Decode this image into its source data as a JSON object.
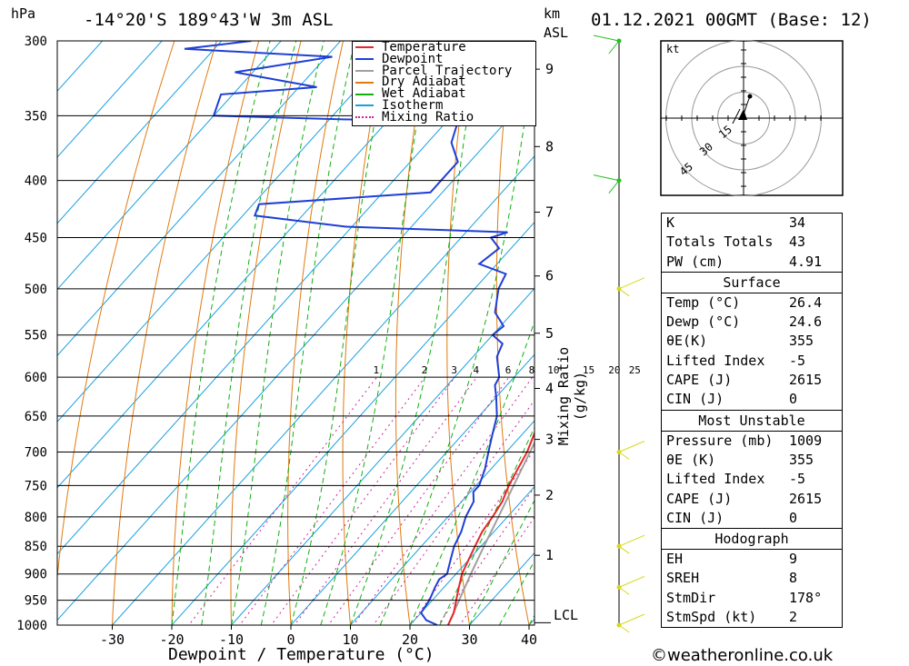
{
  "header": {
    "hpa": "hPa",
    "location": "-14°20'S 189°43'W 3m ASL",
    "km": "km",
    "asl": "ASL",
    "datetime": "01.12.2021 00GMT (Base: 12)"
  },
  "xaxis": {
    "label": "Dewpoint / Temperature (°C)",
    "ticks": [
      "-30",
      "-20",
      "-10",
      "0",
      "10",
      "20",
      "30",
      "40"
    ]
  },
  "yaxis": {
    "ticks": [
      "300",
      "350",
      "400",
      "450",
      "500",
      "550",
      "600",
      "650",
      "700",
      "750",
      "800",
      "850",
      "900",
      "950",
      "1000"
    ]
  },
  "km_ticks": [
    "9",
    "8",
    "7",
    "6",
    "5",
    "4",
    "3",
    "2",
    "1"
  ],
  "lcl_label": "LCL",
  "mixing_label": "Mixing Ratio (g/kg)",
  "mixing_values": [
    "1",
    "2",
    "3",
    "4",
    "6",
    "8",
    "10",
    "15",
    "20",
    "25"
  ],
  "legend": [
    "Temperature",
    "Dewpoint",
    "Parcel Trajectory",
    "Dry Adiabat",
    "Wet Adiabat",
    "Isotherm",
    "Mixing Ratio"
  ],
  "colors": {
    "temperature": "#e8262b",
    "dewpoint": "#1f3fd6",
    "parcel": "#a0a0a0",
    "dry": "#e07a10",
    "wet": "#10b010",
    "isotherm": "#1aa0e0",
    "mixing": "#d0209a",
    "wind": "#d8d81a"
  },
  "hodograph": {
    "unit": "kt",
    "rings": [
      "15",
      "30",
      "45"
    ]
  },
  "indices": [
    {
      "label": "K",
      "value": "34"
    },
    {
      "label": "Totals Totals",
      "value": "43"
    },
    {
      "label": "PW (cm)",
      "value": "4.91"
    }
  ],
  "surface": {
    "title": "Surface",
    "rows": [
      {
        "label": "Temp (°C)",
        "value": "26.4"
      },
      {
        "label": "Dewp (°C)",
        "value": "24.6"
      },
      {
        "label": "θE(K)",
        "value": "355"
      },
      {
        "label": "Lifted Index",
        "value": "-5"
      },
      {
        "label": "CAPE (J)",
        "value": "2615"
      },
      {
        "label": "CIN (J)",
        "value": "0"
      }
    ]
  },
  "most_unstable": {
    "title": "Most Unstable",
    "rows": [
      {
        "label": "Pressure (mb)",
        "value": "1009"
      },
      {
        "label": "θE (K)",
        "value": "355"
      },
      {
        "label": "Lifted Index",
        "value": "-5"
      },
      {
        "label": "CAPE (J)",
        "value": "2615"
      },
      {
        "label": "CIN (J)",
        "value": "0"
      }
    ]
  },
  "hodo_table": {
    "title": "Hodograph",
    "rows": [
      {
        "label": "EH",
        "value": "9"
      },
      {
        "label": "SREH",
        "value": "8"
      },
      {
        "label": "StmDir",
        "value": "178°"
      },
      {
        "label": "StmSpd (kt)",
        "value": "2"
      }
    ]
  },
  "copyright": "©weatheronline.co.uk",
  "chart_data": {
    "type": "line",
    "title": "-14°20'S 189°43'W 3m ASL",
    "xlabel": "Dewpoint / Temperature (°C)",
    "ylabel": "hPa",
    "xlim": [
      -40,
      40
    ],
    "ylim": [
      1000,
      300
    ],
    "y_scale": "log",
    "skew": "skew-T",
    "series": [
      {
        "name": "Temperature",
        "points": [
          [
            1000,
            26.4
          ],
          [
            975,
            25.5
          ],
          [
            950,
            24
          ],
          [
            925,
            22.5
          ],
          [
            900,
            21
          ],
          [
            875,
            20
          ],
          [
            850,
            19
          ],
          [
            825,
            18
          ],
          [
            800,
            17.5
          ],
          [
            775,
            16.8
          ],
          [
            750,
            15.5
          ],
          [
            725,
            14.5
          ],
          [
            700,
            13.5
          ],
          [
            675,
            12
          ],
          [
            650,
            10.5
          ],
          [
            625,
            9.5
          ],
          [
            600,
            8
          ],
          [
            575,
            6
          ],
          [
            550,
            4
          ],
          [
            525,
            2
          ],
          [
            500,
            0
          ],
          [
            475,
            -2.5
          ],
          [
            450,
            -5
          ],
          [
            425,
            -8
          ],
          [
            400,
            -11
          ],
          [
            375,
            -14
          ],
          [
            350,
            -18
          ],
          [
            325,
            -22.5
          ],
          [
            300,
            -28
          ]
        ]
      },
      {
        "name": "Dewpoint",
        "points": [
          [
            1000,
            24.6
          ],
          [
            990,
            22
          ],
          [
            975,
            20
          ],
          [
            950,
            19.5
          ],
          [
            925,
            18.5
          ],
          [
            910,
            18
          ],
          [
            900,
            18.5
          ],
          [
            875,
            17
          ],
          [
            850,
            15.5
          ],
          [
            825,
            14.5
          ],
          [
            800,
            13
          ],
          [
            775,
            12
          ],
          [
            760,
            10.5
          ],
          [
            750,
            10.5
          ],
          [
            725,
            9
          ],
          [
            700,
            7
          ],
          [
            675,
            5
          ],
          [
            650,
            3
          ],
          [
            625,
            0
          ],
          [
            610,
            -2
          ],
          [
            600,
            -2.5
          ],
          [
            575,
            -6
          ],
          [
            560,
            -7
          ],
          [
            550,
            -10
          ],
          [
            540,
            -9.5
          ],
          [
            525,
            -13
          ],
          [
            500,
            -16
          ],
          [
            485,
            -17
          ],
          [
            475,
            -23
          ],
          [
            460,
            -22
          ],
          [
            450,
            -25
          ],
          [
            445,
            -23
          ],
          [
            440,
            -51
          ],
          [
            430,
            -68
          ],
          [
            420,
            -69
          ],
          [
            410,
            -42
          ],
          [
            400,
            -42
          ],
          [
            385,
            -42
          ],
          [
            370,
            -46
          ],
          [
            355,
            -48
          ],
          [
            350,
            -90
          ],
          [
            335,
            -92
          ],
          [
            330,
            -77
          ],
          [
            320,
            -93
          ],
          [
            310,
            -79
          ],
          [
            305,
            -105
          ],
          [
            300,
            -95
          ]
        ]
      },
      {
        "name": "Parcel Trajectory",
        "points": [
          [
            1000,
            26.4
          ],
          [
            950,
            24.5
          ],
          [
            900,
            22.5
          ],
          [
            850,
            20.5
          ],
          [
            800,
            18.5
          ],
          [
            750,
            16.3
          ],
          [
            700,
            14
          ],
          [
            650,
            11.5
          ],
          [
            600,
            8.8
          ],
          [
            550,
            5.8
          ],
          [
            500,
            2.5
          ],
          [
            450,
            -1.5
          ],
          [
            400,
            -6
          ],
          [
            350,
            -11.5
          ],
          [
            325,
            -14.5
          ]
        ]
      }
    ]
  }
}
